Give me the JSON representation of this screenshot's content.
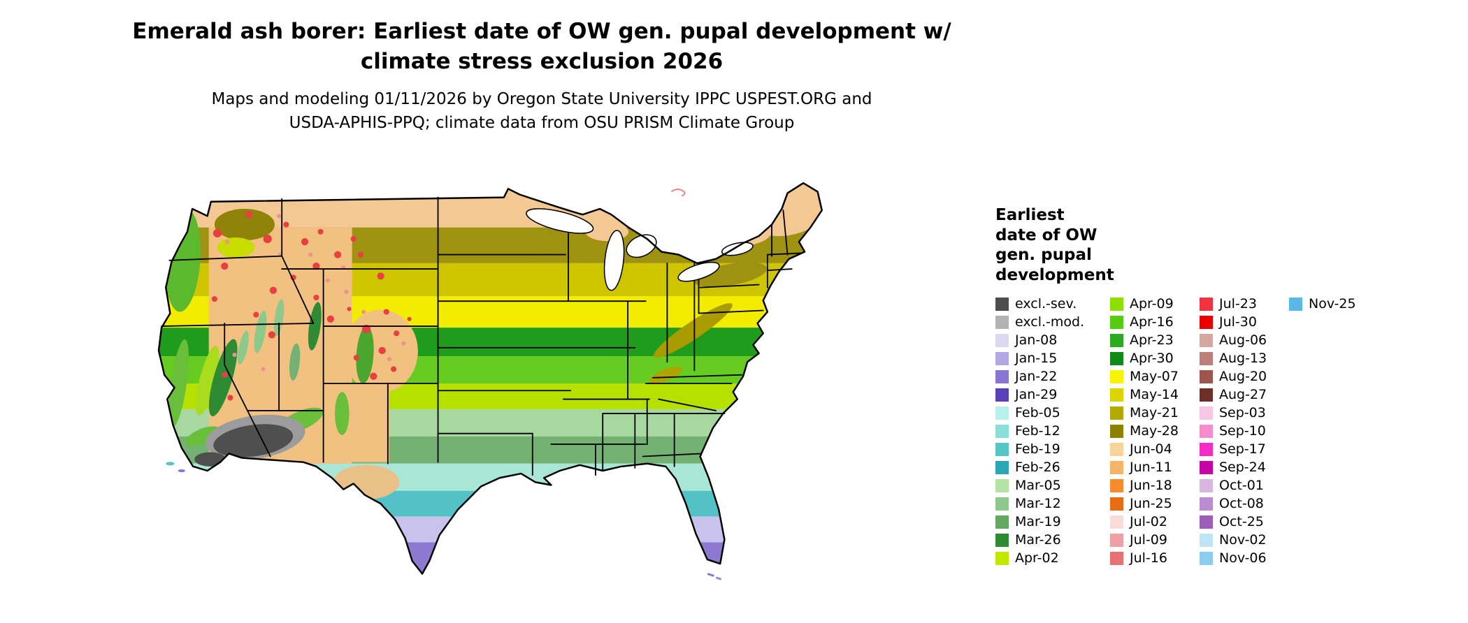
{
  "title": {
    "line1": "Emerald ash borer: Earliest date of OW gen. pupal development w/",
    "line2": "climate stress exclusion 2026"
  },
  "subtitle": {
    "line1": "Maps and modeling 01/11/2026 by Oregon State University IPPC USPEST.ORG and",
    "line2": "USDA-APHIS-PPQ; climate data from OSU PRISM Climate Group"
  },
  "legend": {
    "title_lines": [
      "Earliest",
      "date of OW",
      "gen. pupal",
      "development"
    ],
    "columns": [
      {
        "entries": [
          {
            "label": "excl.-sev.",
            "color": "#4d4d4d"
          },
          {
            "label": "excl.-mod.",
            "color": "#b3b3b3"
          },
          {
            "label": "Jan-08",
            "color": "#dcd7f0"
          },
          {
            "label": "Jan-15",
            "color": "#b3a6e3"
          },
          {
            "label": "Jan-22",
            "color": "#8a75d2"
          },
          {
            "label": "Jan-29",
            "color": "#5a41b8"
          },
          {
            "label": "Feb-05",
            "color": "#b8efe8"
          },
          {
            "label": "Feb-12",
            "color": "#8adfd8"
          },
          {
            "label": "Feb-19",
            "color": "#55c6c6"
          },
          {
            "label": "Feb-26",
            "color": "#2ba6b5"
          },
          {
            "label": "Mar-05",
            "color": "#b5e3a6"
          },
          {
            "label": "Mar-12",
            "color": "#8cc98a"
          },
          {
            "label": "Mar-19",
            "color": "#63a963"
          },
          {
            "label": "Mar-26",
            "color": "#2e8b33"
          },
          {
            "label": "Apr-02",
            "color": "#c3e800"
          }
        ]
      },
      {
        "entries": [
          {
            "label": "Apr-09",
            "color": "#8ce000"
          },
          {
            "label": "Apr-16",
            "color": "#55cc11"
          },
          {
            "label": "Apr-23",
            "color": "#2cab22"
          },
          {
            "label": "Apr-30",
            "color": "#0f8a16"
          },
          {
            "label": "May-07",
            "color": "#f7f400"
          },
          {
            "label": "May-14",
            "color": "#ddd500"
          },
          {
            "label": "May-21",
            "color": "#b3a900"
          },
          {
            "label": "May-28",
            "color": "#8a8200"
          },
          {
            "label": "Jun-04",
            "color": "#f7d49c"
          },
          {
            "label": "Jun-11",
            "color": "#f7b366"
          },
          {
            "label": "Jun-18",
            "color": "#f78c2e"
          },
          {
            "label": "Jun-25",
            "color": "#e86c14"
          },
          {
            "label": "Jul-02",
            "color": "#f7dcd8"
          },
          {
            "label": "Jul-09",
            "color": "#f0a0a4"
          },
          {
            "label": "Jul-16",
            "color": "#e87272"
          }
        ]
      },
      {
        "entries": [
          {
            "label": "Jul-23",
            "color": "#f03440"
          },
          {
            "label": "Jul-30",
            "color": "#e80000"
          },
          {
            "label": "Aug-06",
            "color": "#d4a8a0"
          },
          {
            "label": "Aug-13",
            "color": "#bc8078"
          },
          {
            "label": "Aug-20",
            "color": "#9c564e"
          },
          {
            "label": "Aug-27",
            "color": "#6e2f28"
          },
          {
            "label": "Sep-03",
            "color": "#f7c6e3"
          },
          {
            "label": "Sep-10",
            "color": "#f78ccd"
          },
          {
            "label": "Sep-17",
            "color": "#f72cc6"
          },
          {
            "label": "Sep-24",
            "color": "#c603a6"
          },
          {
            "label": "Oct-01",
            "color": "#d8b6e0"
          },
          {
            "label": "Oct-08",
            "color": "#bc8cd0"
          },
          {
            "label": "Oct-25",
            "color": "#9c5eb8"
          },
          {
            "label": "Nov-02",
            "color": "#bfe3f7"
          },
          {
            "label": "Nov-06",
            "color": "#8cccf0"
          }
        ]
      },
      {
        "entries": [
          {
            "label": "Nov-25",
            "color": "#5ab8e8"
          }
        ]
      }
    ]
  }
}
